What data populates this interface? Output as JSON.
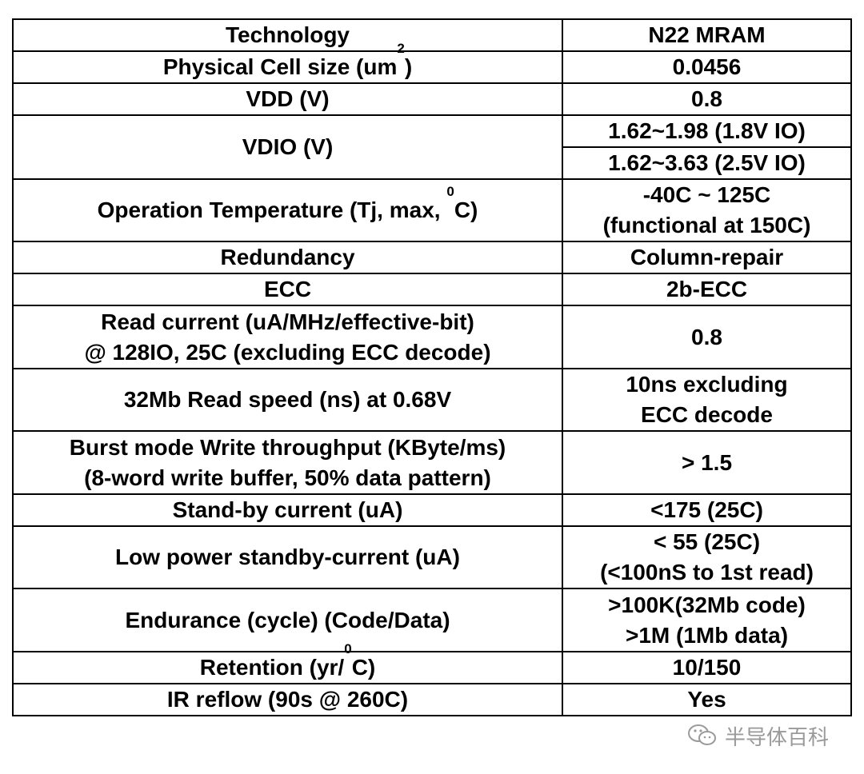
{
  "table": {
    "header": {
      "label": "Technology",
      "value": "N22 MRAM"
    },
    "rows": [
      {
        "label": "Physical Cell size (um",
        "label_sup": "2",
        "label_end": ")",
        "value": "0.0456"
      },
      {
        "label": "VDD (V)",
        "value": "0.8"
      },
      {
        "label": "VDIO (V)",
        "values": [
          "1.62~1.98 (1.8V IO)",
          "1.62~3.63 (2.5V IO)"
        ]
      },
      {
        "label": "Operation Temperature (Tj, max, ",
        "label_sup": "0",
        "label_end": "C)",
        "value_lines": [
          "-40C ~ 125C",
          "(functional at 150C)"
        ]
      },
      {
        "label": "Redundancy",
        "value": "Column-repair"
      },
      {
        "label": "ECC",
        "value": "2b-ECC"
      },
      {
        "label_lines": [
          "Read current (uA/MHz/effective-bit)",
          "@ 128IO, 25C (excluding ECC decode)"
        ],
        "value": "0.8"
      },
      {
        "label": "32Mb Read speed (ns) at 0.68V",
        "value_lines": [
          "10ns excluding",
          "ECC decode"
        ]
      },
      {
        "label_lines": [
          "Burst mode Write throughput (KByte/ms)",
          "(8-word write buffer, 50% data pattern)"
        ],
        "value": "> 1.5"
      },
      {
        "label": "Stand-by current (uA)",
        "value": "<175 (25C)"
      },
      {
        "label": "Low power standby-current (uA)",
        "value_lines": [
          "< 55 (25C)",
          "(<100nS to 1st read)"
        ]
      },
      {
        "label": "Endurance (cycle) (Code/Data)",
        "value_lines": [
          ">100K(32Mb code)",
          ">1M (1Mb data)"
        ]
      },
      {
        "label": "Retention (yr/",
        "label_sup": "0",
        "label_end": "C)",
        "value": "10/150"
      },
      {
        "label": "IR reflow (90s @ 260C)",
        "value": "Yes"
      }
    ]
  },
  "watermark": {
    "icon": "wechat-icon",
    "text": "半导体百科",
    "color": "#9a9a9a"
  }
}
